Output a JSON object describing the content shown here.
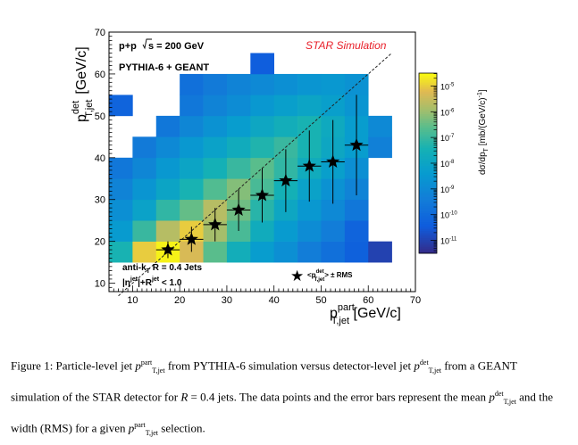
{
  "figure": {
    "header": {
      "collision": "p+p",
      "sqrt_s_value": "s = 200 GeV",
      "generator": "PYTHIA-6 + GEANT",
      "star_label": "STAR Simulation",
      "jet_algo_line1": "anti-k",
      "jet_algo_sub": "T",
      "jet_algo_rest": " R = 0.4 Jets",
      "eta_cut_prefix": "|η",
      "eta_cut_sup": "jet",
      "eta_cut_mid": "|+R",
      "eta_cut_sup2": "jet",
      "eta_cut_rest": " < 1.0",
      "legend_mean": "<p",
      "legend_mean_sup": "det",
      "legend_mean_sub": "T,jet",
      "legend_rms": "> ± RMS",
      "star_color": "#e8202a"
    },
    "axis_labels": {
      "x_main": "p",
      "x_sup": "part",
      "x_sub": "T,jet",
      "x_unit": " [GeV/c]",
      "y_main": "p",
      "y_sup": "det",
      "y_sub": "T,jet",
      "y_unit": "[GeV/c]",
      "z_main": "dσ/dp",
      "z_sub": "T",
      "z_unit": " [mb/(GeV/c)",
      "z_exp": "-1",
      "z_close": "]"
    }
  },
  "chart_data": {
    "type": "heatmap",
    "xlabel": "p_T,jet^part [GeV/c]",
    "ylabel": "p_T,jet^det [GeV/c]",
    "zlabel": "dσ/dp_T [mb/(GeV/c)^-1]",
    "xlim": [
      5,
      70
    ],
    "ylim": [
      8,
      70
    ],
    "x_ticks": [
      "10",
      "20",
      "30",
      "40",
      "50",
      "60",
      "70"
    ],
    "y_ticks": [
      "10",
      "20",
      "30",
      "40",
      "50",
      "60",
      "70"
    ],
    "z_log": true,
    "z_tick_labels": [
      "10",
      "10",
      "10",
      "10",
      "10",
      "10",
      "10"
    ],
    "z_tick_exponents": [
      "-11",
      "-10",
      "-9",
      "-8",
      "-7",
      "-6",
      "-5"
    ],
    "z_range_log10": [
      -11.5,
      -4.5
    ],
    "bin_width": 5,
    "bins": [
      [
        7.5,
        17.5,
        -7.4
      ],
      [
        12.5,
        17.5,
        -5.0
      ],
      [
        17.5,
        17.5,
        -4.6
      ],
      [
        22.5,
        17.5,
        -5.3
      ],
      [
        27.5,
        17.5,
        -6.6
      ],
      [
        32.5,
        17.5,
        -7.6
      ],
      [
        37.5,
        17.5,
        -8.3
      ],
      [
        42.5,
        17.5,
        -8.8
      ],
      [
        47.5,
        17.5,
        -9.4
      ],
      [
        52.5,
        17.5,
        -9.8
      ],
      [
        57.5,
        17.5,
        -10.3
      ],
      [
        62.5,
        17.5,
        -11.0
      ],
      [
        7.5,
        22.5,
        -8.4
      ],
      [
        12.5,
        22.5,
        -7.0
      ],
      [
        17.5,
        22.5,
        -5.7
      ],
      [
        22.5,
        22.5,
        -5.0
      ],
      [
        27.5,
        22.5,
        -5.9
      ],
      [
        32.5,
        22.5,
        -6.8
      ],
      [
        37.5,
        22.5,
        -7.7
      ],
      [
        42.5,
        22.5,
        -8.4
      ],
      [
        47.5,
        22.5,
        -8.9
      ],
      [
        52.5,
        22.5,
        -9.4
      ],
      [
        57.5,
        22.5,
        -10.2
      ],
      [
        7.5,
        27.5,
        -8.8
      ],
      [
        12.5,
        27.5,
        -8.1
      ],
      [
        17.5,
        27.5,
        -7.1
      ],
      [
        22.5,
        27.5,
        -6.5
      ],
      [
        27.5,
        27.5,
        -5.7
      ],
      [
        32.5,
        27.5,
        -6.4
      ],
      [
        37.5,
        27.5,
        -7.2
      ],
      [
        42.5,
        27.5,
        -7.9
      ],
      [
        47.5,
        27.5,
        -8.5
      ],
      [
        52.5,
        27.5,
        -9.0
      ],
      [
        57.5,
        27.5,
        -9.6
      ],
      [
        7.5,
        32.5,
        -9.2
      ],
      [
        12.5,
        32.5,
        -8.6
      ],
      [
        17.5,
        32.5,
        -8.0
      ],
      [
        22.5,
        32.5,
        -7.4
      ],
      [
        27.5,
        32.5,
        -6.7
      ],
      [
        32.5,
        32.5,
        -6.2
      ],
      [
        37.5,
        32.5,
        -6.8
      ],
      [
        42.5,
        32.5,
        -7.5
      ],
      [
        47.5,
        32.5,
        -8.1
      ],
      [
        52.5,
        32.5,
        -8.7
      ],
      [
        57.5,
        32.5,
        -9.2
      ],
      [
        7.5,
        37.5,
        -9.6
      ],
      [
        12.5,
        37.5,
        -9.1
      ],
      [
        17.5,
        37.5,
        -8.5
      ],
      [
        22.5,
        37.5,
        -8.0
      ],
      [
        27.5,
        37.5,
        -7.5
      ],
      [
        32.5,
        37.5,
        -7.0
      ],
      [
        37.5,
        37.5,
        -6.6
      ],
      [
        42.5,
        37.5,
        -7.1
      ],
      [
        47.5,
        37.5,
        -7.7
      ],
      [
        52.5,
        37.5,
        -8.2
      ],
      [
        57.5,
        37.5,
        -8.8
      ],
      [
        12.5,
        42.5,
        -9.5
      ],
      [
        17.5,
        42.5,
        -9.0
      ],
      [
        22.5,
        42.5,
        -8.5
      ],
      [
        27.5,
        42.5,
        -8.1
      ],
      [
        32.5,
        42.5,
        -7.7
      ],
      [
        37.5,
        42.5,
        -7.3
      ],
      [
        42.5,
        42.5,
        -7.0
      ],
      [
        47.5,
        42.5,
        -7.4
      ],
      [
        52.5,
        42.5,
        -7.9
      ],
      [
        57.5,
        42.5,
        -8.3
      ],
      [
        62.5,
        42.5,
        -9.3
      ],
      [
        17.5,
        47.5,
        -9.6
      ],
      [
        22.5,
        47.5,
        -9.1
      ],
      [
        27.5,
        47.5,
        -8.7
      ],
      [
        32.5,
        47.5,
        -8.3
      ],
      [
        37.5,
        47.5,
        -7.9
      ],
      [
        42.5,
        47.5,
        -7.6
      ],
      [
        47.5,
        47.5,
        -7.4
      ],
      [
        52.5,
        47.5,
        -7.8
      ],
      [
        57.5,
        47.5,
        -8.3
      ],
      [
        62.5,
        47.5,
        -9.0
      ],
      [
        7.5,
        52.5,
        -10.2
      ],
      [
        22.5,
        52.5,
        -9.6
      ],
      [
        27.5,
        52.5,
        -9.2
      ],
      [
        32.5,
        52.5,
        -8.9
      ],
      [
        37.5,
        52.5,
        -8.5
      ],
      [
        42.5,
        52.5,
        -8.2
      ],
      [
        47.5,
        52.5,
        -8.0
      ],
      [
        52.5,
        52.5,
        -8.2
      ],
      [
        57.5,
        52.5,
        -8.6
      ],
      [
        22.5,
        57.5,
        -9.8
      ],
      [
        27.5,
        57.5,
        -9.5
      ],
      [
        32.5,
        57.5,
        -9.2
      ],
      [
        37.5,
        57.5,
        -9.0
      ],
      [
        42.5,
        57.5,
        -8.8
      ],
      [
        47.5,
        57.5,
        -8.6
      ],
      [
        52.5,
        57.5,
        -8.5
      ],
      [
        57.5,
        57.5,
        -8.7
      ],
      [
        37.5,
        62.5,
        -10.4
      ]
    ],
    "series": [
      {
        "name": "<p_T,jet^det> ± RMS",
        "x": [
          17.5,
          22.5,
          27.5,
          32.5,
          37.5,
          42.5,
          47.5,
          52.5,
          57.5
        ],
        "y": [
          18,
          20.5,
          24,
          27.5,
          31,
          34.5,
          38,
          39,
          43
        ],
        "rms": [
          2,
          3,
          4,
          5,
          6.5,
          7.5,
          8.5,
          10,
          12
        ]
      }
    ],
    "diagonal": {
      "x": [
        7,
        65
      ],
      "y": [
        7,
        65
      ],
      "style": "dashed"
    }
  },
  "caption": {
    "p1": "Figure 1: Particle-level jet ",
    "p2": " from PYTHIA-6 simulation versus detector-level jet ",
    "p3": " from a GEANT simulation of the STAR detector for ",
    "R_sym": "R",
    "p4": " = 0.4 jets. The data points and the error bars represent the mean ",
    "p5": " and the width (RMS) for a given ",
    "p6": " selection.",
    "p_sym": "p",
    "sup_part": "part",
    "sup_det": "det",
    "sub_tjet": "T,jet"
  }
}
